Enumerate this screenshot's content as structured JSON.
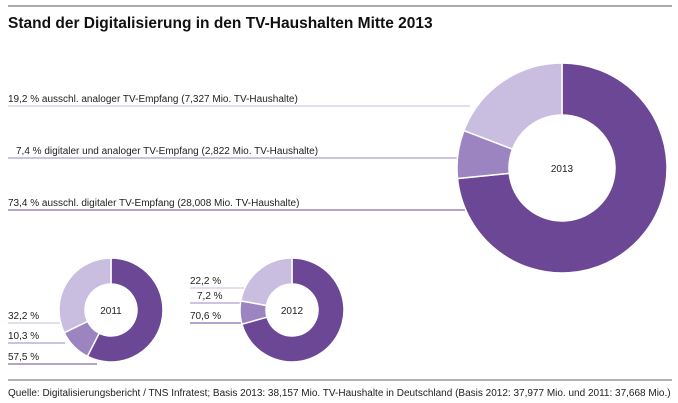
{
  "chart_data": [
    {
      "type": "pie",
      "title": "Stand der Digitalisierung in den TV-Haushalten Mitte 2013",
      "center_label": "2013",
      "categories": [
        "ausschl. digitaler TV-Empfang",
        "digitaler und analoger TV-Empfang",
        "ausschl. analoger TV-Empfang"
      ],
      "values": [
        73.4,
        7.4,
        19.2
      ],
      "labels": [
        "73,4 % ausschl. digitaler TV-Empfang (28,008 Mio. TV-Haushalte)",
        "7,4 % digitaler und analoger TV-Empfang (2,822 Mio. TV-Haushalte)",
        "19,2 % ausschl. analoger TV-Empfang (7,327 Mio. TV-Haushalte)"
      ],
      "colors": [
        "#6b4795",
        "#9b84bf",
        "#c9bde0"
      ]
    },
    {
      "type": "pie",
      "center_label": "2011",
      "values": [
        57.5,
        10.3,
        32.2
      ],
      "labels": [
        "57,5 %",
        "10,3 %",
        "32,2 %"
      ],
      "colors": [
        "#6b4795",
        "#9b84bf",
        "#c9bde0"
      ]
    },
    {
      "type": "pie",
      "center_label": "2012",
      "values": [
        70.6,
        7.2,
        22.2
      ],
      "labels": [
        "70,6 %",
        "7,2 %",
        "22,2 %"
      ],
      "colors": [
        "#6b4795",
        "#9b84bf",
        "#c9bde0"
      ]
    }
  ],
  "source": "Quelle: Digitalisierungsbericht / TNS Infratest; Basis 2013: 38,157 Mio. TV-Haushalte in Deutschland (Basis 2012: 37,977 Mio. und 2011: 37,668 Mio.)"
}
